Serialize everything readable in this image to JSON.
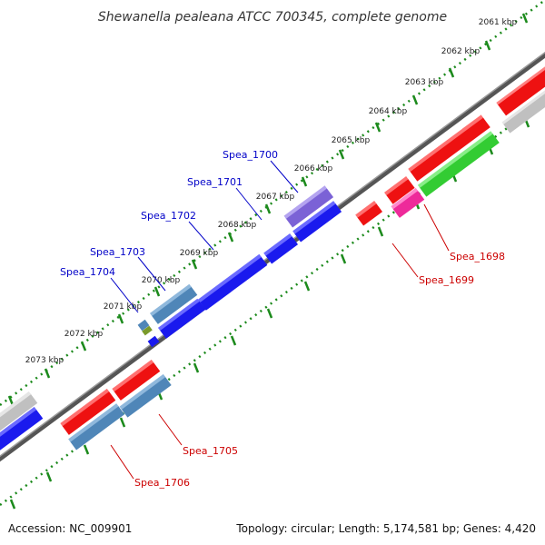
{
  "title": "Shewanella pealeana ATCC 700345, complete genome",
  "footer": {
    "accession": "Accession: NC_009901",
    "summary": "Topology: circular; Length: 5,174,581 bp; Genes: 4,420"
  },
  "scale": {
    "ticks": [
      "2061 kbp",
      "2062 kbp",
      "2063 kbp",
      "2064 kbp",
      "2065 kbp",
      "2066 kbp",
      "2067 kbp",
      "2068 kbp",
      "2069 kbp",
      "2070 kbp",
      "2071 kbp",
      "2072 kbp",
      "2073 kbp"
    ]
  },
  "colors": {
    "backbone": "#777777",
    "dots": "#1c8a1c",
    "forward_label": "#0000c8",
    "reverse_label": "#cc0000",
    "red": "#ee1111",
    "blue": "#1a1aee",
    "steel": "#4f86b8",
    "purple": "#7b62d6",
    "pink": "#ee2a9a",
    "green": "#33cc33",
    "gray": "#c0c0c0",
    "olive": "#7a9a2a"
  },
  "labels": {
    "spea_1700": "Spea_1700",
    "spea_1701": "Spea_1701",
    "spea_1702": "Spea_1702",
    "spea_1703": "Spea_1703",
    "spea_1704": "Spea_1704",
    "spea_1698": "Spea_1698",
    "spea_1699": "Spea_1699",
    "spea_1705": "Spea_1705",
    "spea_1706": "Spea_1706"
  }
}
